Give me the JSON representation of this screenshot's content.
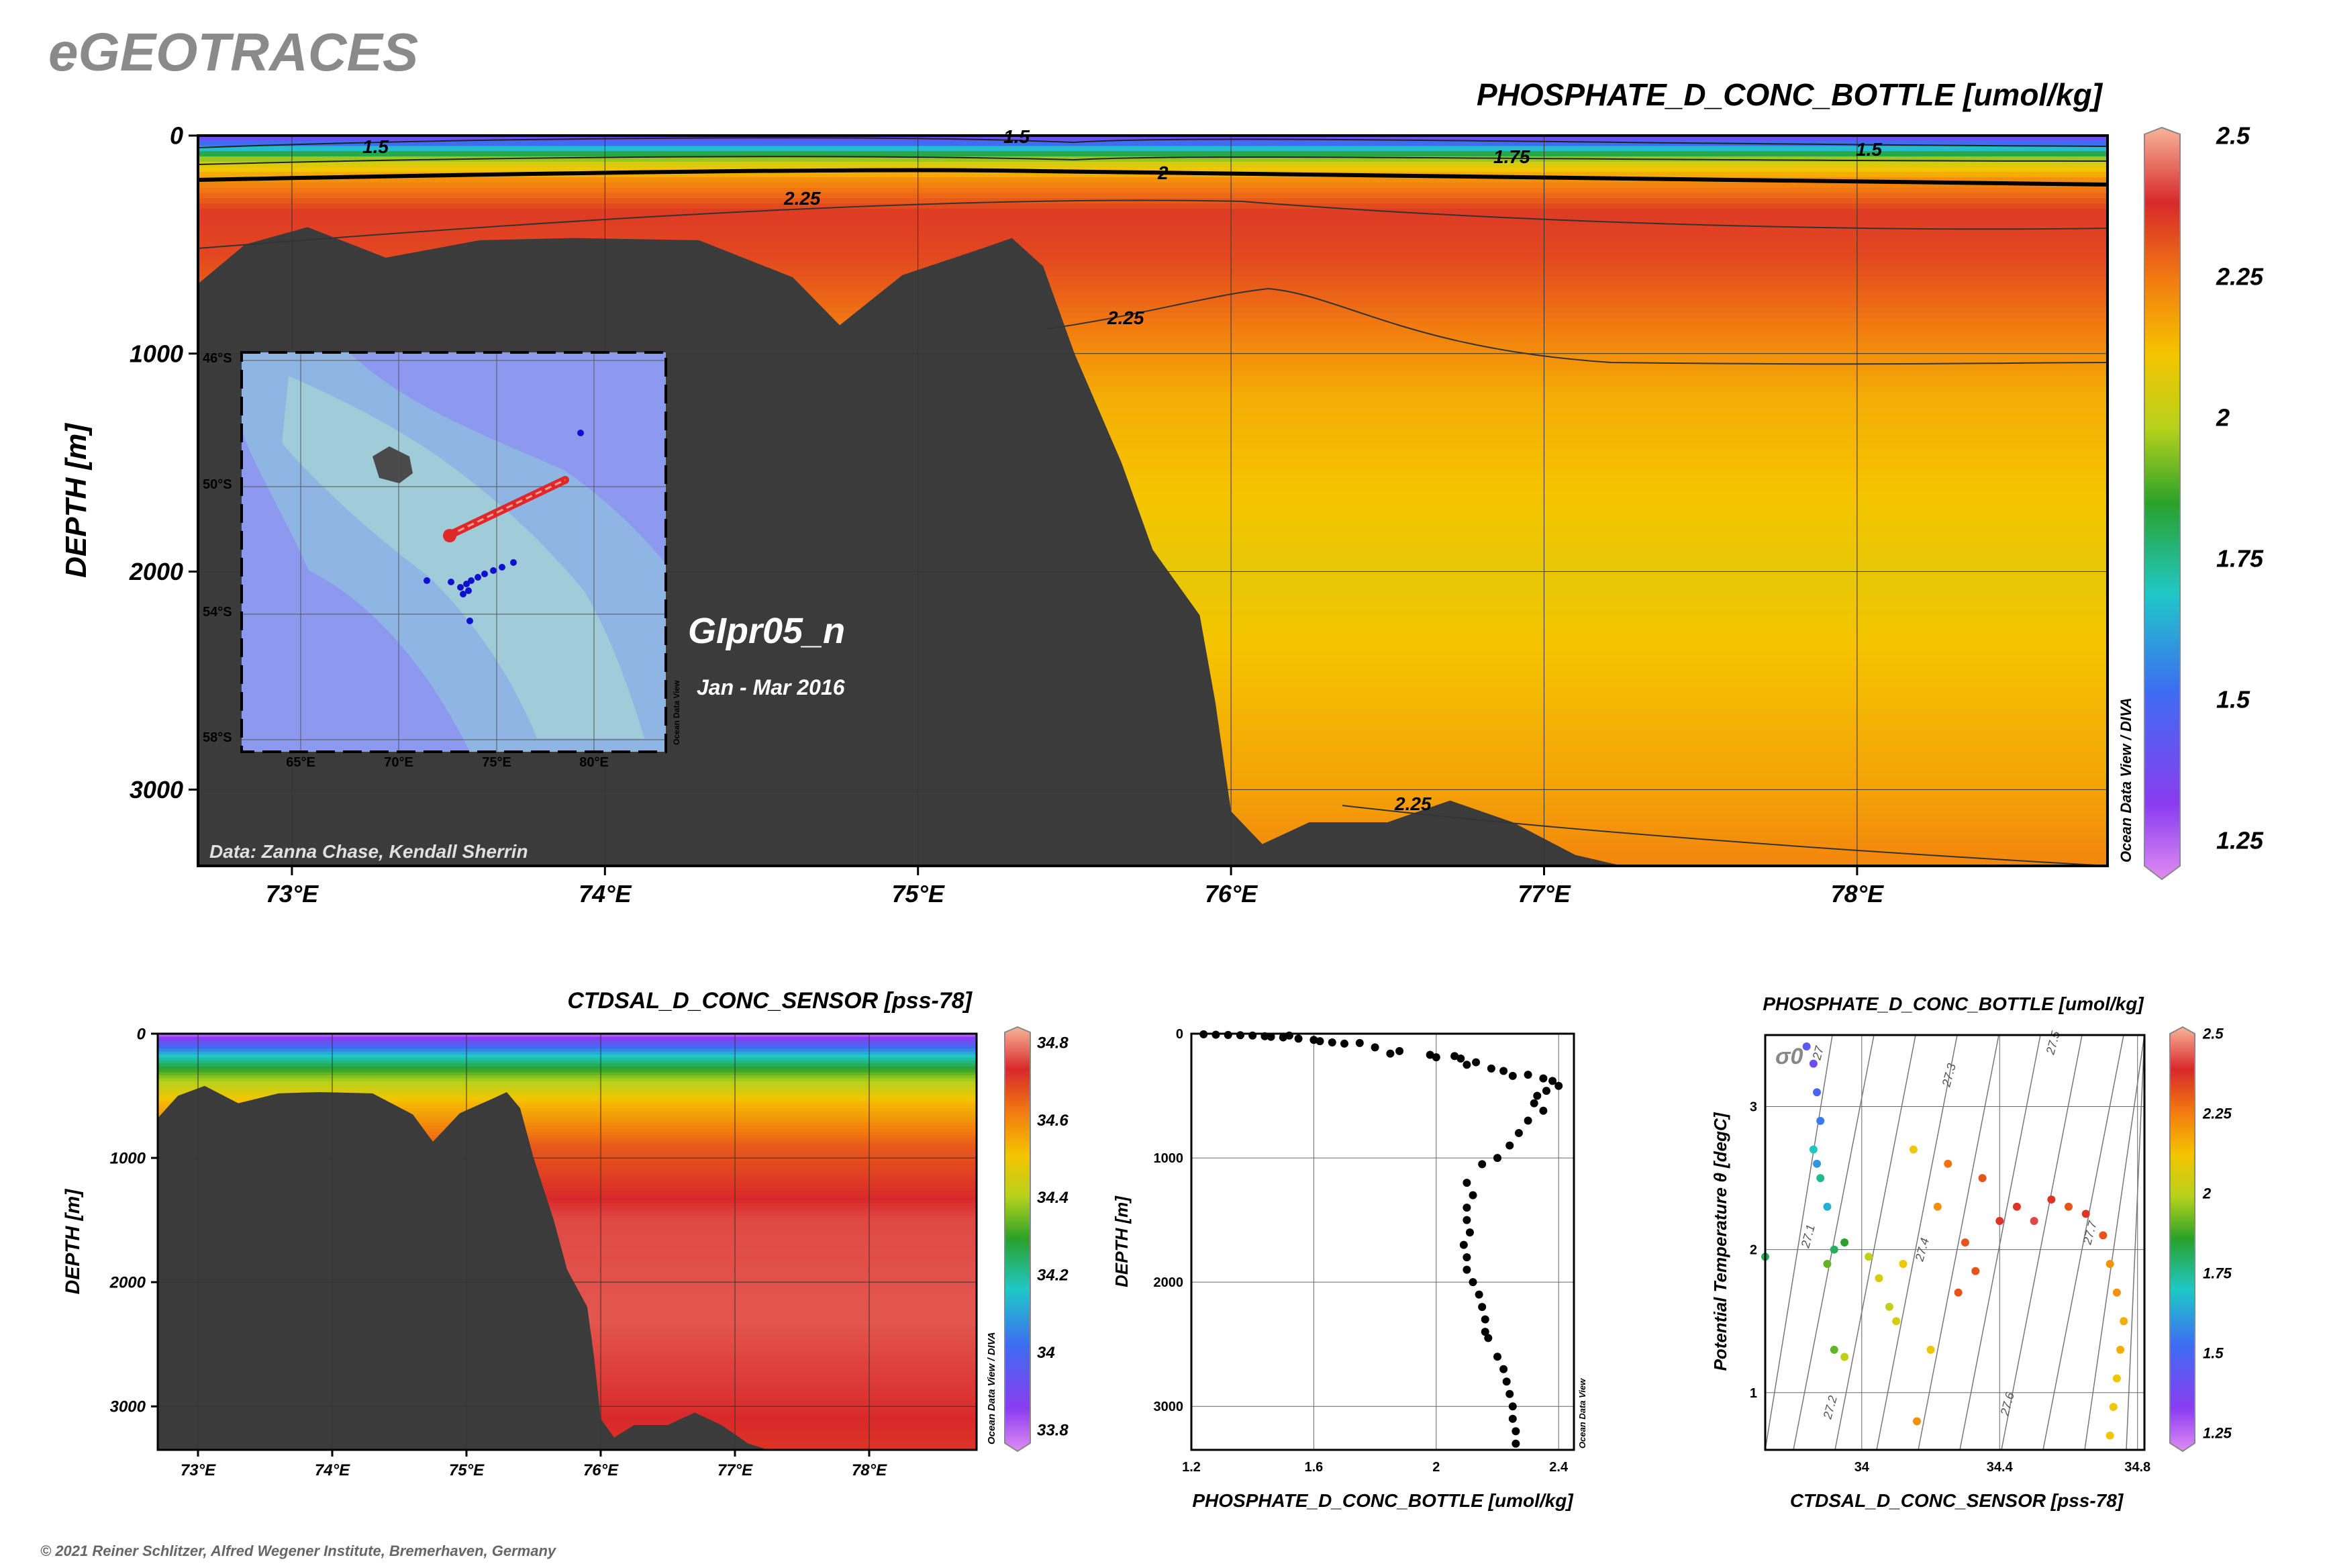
{
  "header": {
    "brand": "eGEOTRACES"
  },
  "footer": {
    "copyright": "© 2021 Reiner Schlitzer, Alfred Wegener Institute, Bremerhaven, Germany"
  },
  "main_section": {
    "title": "PHOSPHATE_D_CONC_BOTTLE [umol/kg]",
    "cruise": "GIpr05_n",
    "period": "Jan - Mar 2016",
    "credit": "Data: Zanna Chase, Kendall Sherrin",
    "watermark": "Ocean Data View / DIVA",
    "ylabel": "DEPTH [m]",
    "colorbar_ticks": [
      "2.5",
      "2.25",
      "2",
      "1.75",
      "1.5",
      "1.25"
    ],
    "contour_labels": [
      "1.5",
      "1.5",
      "1.5",
      "1.75",
      "2",
      "2.25",
      "2.25",
      "2.25"
    ]
  },
  "inset_map": {
    "lat_labels": [
      "46°S",
      "50°S",
      "54°S",
      "58°S"
    ],
    "lon_labels": [
      "65°E",
      "70°E",
      "75°E",
      "80°E"
    ],
    "watermark": "Ocean Data View"
  },
  "salinity_section": {
    "title": "CTDSAL_D_CONC_SENSOR [pss-78]",
    "ylabel": "DEPTH [m]",
    "watermark": "Ocean Data View / DIVA",
    "colorbar_ticks": [
      "34.8",
      "34.6",
      "34.4",
      "34.2",
      "34",
      "33.8"
    ]
  },
  "profile_plot": {
    "xlabel": "PHOSPHATE_D_CONC_BOTTLE [umol/kg]",
    "ylabel": "DEPTH [m]",
    "watermark": "Ocean Data View"
  },
  "ts_plot": {
    "title": "PHOSPHATE_D_CONC_BOTTLE [umol/kg]",
    "xlabel": "CTDSAL_D_CONC_SENSOR [pss-78]",
    "ylabel": "Potential Temperature θ [degC]",
    "sigma_label": "σ0",
    "isopycnal_labels": [
      "27",
      "27.1",
      "27.2",
      "27.3",
      "27.4",
      "27.5",
      "27.6",
      "27.7"
    ],
    "colorbar_ticks": [
      "2.5",
      "2.25",
      "2",
      "1.75",
      "1.5",
      "1.25"
    ]
  },
  "chart_data": [
    {
      "type": "heatmap",
      "name": "main_section",
      "x_ticks": [
        "73°E",
        "74°E",
        "75°E",
        "76°E",
        "77°E",
        "78°E"
      ],
      "x_values": [
        73,
        74,
        75,
        76,
        77,
        78
      ],
      "xlim": [
        72.7,
        78.8
      ],
      "y_ticks": [
        "0",
        "1000",
        "2000",
        "3000"
      ],
      "y_values": [
        0,
        1000,
        2000,
        3000
      ],
      "ylim": [
        3350,
        0
      ],
      "zlim": [
        1.2,
        2.5
      ],
      "profiles": [
        {
          "depth": 0,
          "value": 1.35
        },
        {
          "depth": 40,
          "value": 1.55
        },
        {
          "depth": 80,
          "value": 1.8
        },
        {
          "depth": 120,
          "value": 2.02
        },
        {
          "depth": 200,
          "value": 2.2
        },
        {
          "depth": 350,
          "value": 2.34
        },
        {
          "depth": 550,
          "value": 2.32
        },
        {
          "depth": 800,
          "value": 2.26
        },
        {
          "depth": 1200,
          "value": 2.15
        },
        {
          "depth": 2000,
          "value": 2.08
        },
        {
          "depth": 3000,
          "value": 2.17
        },
        {
          "depth": 3350,
          "value": 2.22
        }
      ],
      "bathymetry": [
        [
          72.7,
          680
        ],
        [
          72.85,
          500
        ],
        [
          73.05,
          420
        ],
        [
          73.3,
          560
        ],
        [
          73.6,
          480
        ],
        [
          73.9,
          470
        ],
        [
          74.3,
          480
        ],
        [
          74.6,
          650
        ],
        [
          74.75,
          870
        ],
        [
          74.95,
          640
        ],
        [
          75.2,
          520
        ],
        [
          75.3,
          470
        ],
        [
          75.4,
          600
        ],
        [
          75.5,
          1000
        ],
        [
          75.65,
          1500
        ],
        [
          75.75,
          1900
        ],
        [
          75.9,
          2200
        ],
        [
          75.95,
          2600
        ],
        [
          76.0,
          3100
        ],
        [
          76.1,
          3250
        ],
        [
          76.25,
          3150
        ],
        [
          76.5,
          3150
        ],
        [
          76.7,
          3050
        ],
        [
          76.9,
          3150
        ],
        [
          77.1,
          3300
        ],
        [
          77.25,
          3350
        ]
      ]
    },
    {
      "type": "heatmap",
      "name": "salinity_section",
      "x_ticks": [
        "73°E",
        "74°E",
        "75°E",
        "76°E",
        "77°E",
        "78°E"
      ],
      "x_values": [
        73,
        74,
        75,
        76,
        77,
        78
      ],
      "xlim": [
        72.7,
        78.8
      ],
      "y_ticks": [
        "0",
        "1000",
        "2000",
        "3000"
      ],
      "y_values": [
        0,
        1000,
        2000,
        3000
      ],
      "ylim": [
        3350,
        0
      ],
      "zlim": [
        33.75,
        34.8
      ],
      "profiles": [
        {
          "depth": 0,
          "value": 33.78
        },
        {
          "depth": 80,
          "value": 33.95
        },
        {
          "depth": 180,
          "value": 34.15
        },
        {
          "depth": 350,
          "value": 34.35
        },
        {
          "depth": 550,
          "value": 34.5
        },
        {
          "depth": 900,
          "value": 34.63
        },
        {
          "depth": 1500,
          "value": 34.72
        },
        {
          "depth": 2300,
          "value": 34.73
        },
        {
          "depth": 3000,
          "value": 34.7
        },
        {
          "depth": 3350,
          "value": 34.68
        }
      ],
      "bathymetry": [
        [
          72.7,
          680
        ],
        [
          72.85,
          500
        ],
        [
          73.05,
          420
        ],
        [
          73.3,
          560
        ],
        [
          73.6,
          480
        ],
        [
          73.9,
          470
        ],
        [
          74.3,
          480
        ],
        [
          74.6,
          650
        ],
        [
          74.75,
          870
        ],
        [
          74.95,
          640
        ],
        [
          75.2,
          520
        ],
        [
          75.3,
          470
        ],
        [
          75.4,
          600
        ],
        [
          75.5,
          1000
        ],
        [
          75.65,
          1500
        ],
        [
          75.75,
          1900
        ],
        [
          75.9,
          2200
        ],
        [
          75.95,
          2600
        ],
        [
          76.0,
          3100
        ],
        [
          76.1,
          3250
        ],
        [
          76.25,
          3150
        ],
        [
          76.5,
          3150
        ],
        [
          76.7,
          3050
        ],
        [
          76.9,
          3150
        ],
        [
          77.1,
          3300
        ],
        [
          77.25,
          3350
        ]
      ]
    },
    {
      "type": "scatter",
      "name": "profile_plot",
      "x_ticks": [
        "1.2",
        "1.6",
        "2",
        "2.4"
      ],
      "x_values": [
        1.2,
        1.6,
        2.0,
        2.4
      ],
      "xlim": [
        1.2,
        2.45
      ],
      "y_ticks": [
        "0",
        "1000",
        "2000",
        "3000"
      ],
      "y_values": [
        0,
        1000,
        2000,
        3000
      ],
      "ylim": [
        3350,
        0
      ],
      "points": [
        [
          1.24,
          5
        ],
        [
          1.28,
          8
        ],
        [
          1.32,
          10
        ],
        [
          1.36,
          12
        ],
        [
          1.4,
          15
        ],
        [
          1.44,
          20
        ],
        [
          1.46,
          25
        ],
        [
          1.5,
          30
        ],
        [
          1.52,
          15
        ],
        [
          1.55,
          40
        ],
        [
          1.6,
          50
        ],
        [
          1.62,
          60
        ],
        [
          1.66,
          70
        ],
        [
          1.7,
          80
        ],
        [
          1.75,
          75
        ],
        [
          1.8,
          110
        ],
        [
          1.85,
          160
        ],
        [
          1.88,
          140
        ],
        [
          1.98,
          170
        ],
        [
          2.0,
          190
        ],
        [
          2.06,
          180
        ],
        [
          2.08,
          200
        ],
        [
          2.1,
          250
        ],
        [
          2.13,
          230
        ],
        [
          2.18,
          280
        ],
        [
          2.22,
          300
        ],
        [
          2.25,
          340
        ],
        [
          2.3,
          330
        ],
        [
          2.35,
          360
        ],
        [
          2.38,
          380
        ],
        [
          2.4,
          420
        ],
        [
          2.36,
          460
        ],
        [
          2.33,
          500
        ],
        [
          2.32,
          560
        ],
        [
          2.35,
          620
        ],
        [
          2.3,
          700
        ],
        [
          2.27,
          800
        ],
        [
          2.24,
          900
        ],
        [
          2.2,
          1000
        ],
        [
          2.15,
          1050
        ],
        [
          2.1,
          1200
        ],
        [
          2.12,
          1300
        ],
        [
          2.1,
          1400
        ],
        [
          2.1,
          1500
        ],
        [
          2.11,
          1600
        ],
        [
          2.09,
          1700
        ],
        [
          2.1,
          1800
        ],
        [
          2.1,
          1900
        ],
        [
          2.12,
          2000
        ],
        [
          2.14,
          2100
        ],
        [
          2.15,
          2200
        ],
        [
          2.16,
          2300
        ],
        [
          2.16,
          2400
        ],
        [
          2.17,
          2450
        ],
        [
          2.2,
          2600
        ],
        [
          2.22,
          2700
        ],
        [
          2.23,
          2800
        ],
        [
          2.24,
          2900
        ],
        [
          2.25,
          3000
        ],
        [
          2.25,
          3100
        ],
        [
          2.26,
          3200
        ],
        [
          2.26,
          3300
        ]
      ]
    },
    {
      "type": "scatter",
      "name": "ts_plot",
      "x_ticks": [
        "34",
        "34.4",
        "34.8"
      ],
      "x_values": [
        34.0,
        34.4,
        34.8
      ],
      "xlim": [
        33.72,
        34.82
      ],
      "y_ticks": [
        "1",
        "2",
        "3"
      ],
      "y_values": [
        1,
        2,
        3
      ],
      "ylim": [
        0.6,
        3.5
      ],
      "zlim": [
        1.2,
        2.5
      ],
      "points": [
        [
          33.84,
          3.42,
          1.45
        ],
        [
          33.86,
          3.3,
          1.4
        ],
        [
          33.87,
          3.1,
          1.5
        ],
        [
          33.88,
          2.9,
          1.55
        ],
        [
          33.86,
          2.7,
          1.7
        ],
        [
          33.87,
          2.6,
          1.6
        ],
        [
          33.88,
          2.5,
          1.75
        ],
        [
          33.9,
          2.3,
          1.65
        ],
        [
          33.92,
          2.0,
          1.8
        ],
        [
          33.72,
          1.95,
          1.8
        ],
        [
          33.9,
          1.9,
          1.9
        ],
        [
          33.95,
          2.05,
          1.85
        ],
        [
          33.92,
          1.3,
          1.9
        ],
        [
          33.95,
          1.25,
          2.0
        ],
        [
          34.02,
          1.95,
          2.0
        ],
        [
          34.05,
          1.8,
          2.05
        ],
        [
          34.08,
          1.6,
          2.0
        ],
        [
          34.1,
          1.5,
          2.05
        ],
        [
          34.12,
          1.9,
          2.1
        ],
        [
          34.15,
          2.7,
          2.1
        ],
        [
          34.2,
          1.3,
          2.1
        ],
        [
          34.22,
          2.3,
          2.2
        ],
        [
          34.25,
          2.6,
          2.25
        ],
        [
          34.3,
          2.05,
          2.3
        ],
        [
          34.33,
          1.85,
          2.3
        ],
        [
          34.35,
          2.5,
          2.3
        ],
        [
          34.4,
          2.2,
          2.35
        ],
        [
          34.45,
          2.3,
          2.35
        ],
        [
          34.5,
          2.2,
          2.4
        ],
        [
          34.55,
          2.35,
          2.35
        ],
        [
          34.6,
          2.3,
          2.3
        ],
        [
          34.65,
          2.25,
          2.35
        ],
        [
          34.7,
          2.1,
          2.3
        ],
        [
          34.72,
          1.9,
          2.2
        ],
        [
          34.74,
          1.7,
          2.2
        ],
        [
          34.76,
          1.5,
          2.15
        ],
        [
          34.75,
          1.3,
          2.15
        ],
        [
          34.74,
          1.1,
          2.1
        ],
        [
          34.73,
          0.9,
          2.1
        ],
        [
          34.72,
          0.7,
          2.1
        ],
        [
          34.16,
          0.8,
          2.2
        ],
        [
          34.28,
          1.7,
          2.3
        ]
      ]
    }
  ]
}
